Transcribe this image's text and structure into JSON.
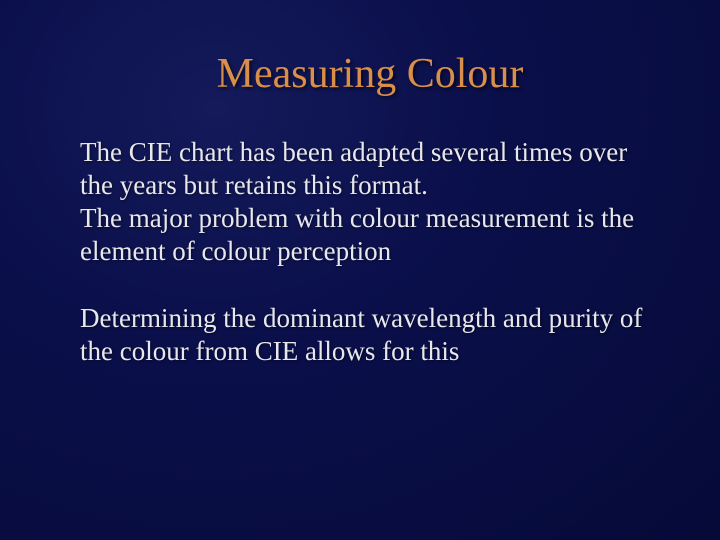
{
  "slide": {
    "title": "Measuring Colour",
    "paragraph1": "The CIE chart has been adapted several times over the years but retains this format.",
    "paragraph2": "The major problem with colour measurement is the element of colour perception",
    "paragraph3": "Determining the dominant wavelength and purity of the colour from CIE allows for this",
    "title_color": "#d98f4a",
    "body_color": "#e8e8ec",
    "background_inner": "#141a5a",
    "background_outer": "#060a38",
    "title_fontsize": 42,
    "body_fontsize": 27
  }
}
